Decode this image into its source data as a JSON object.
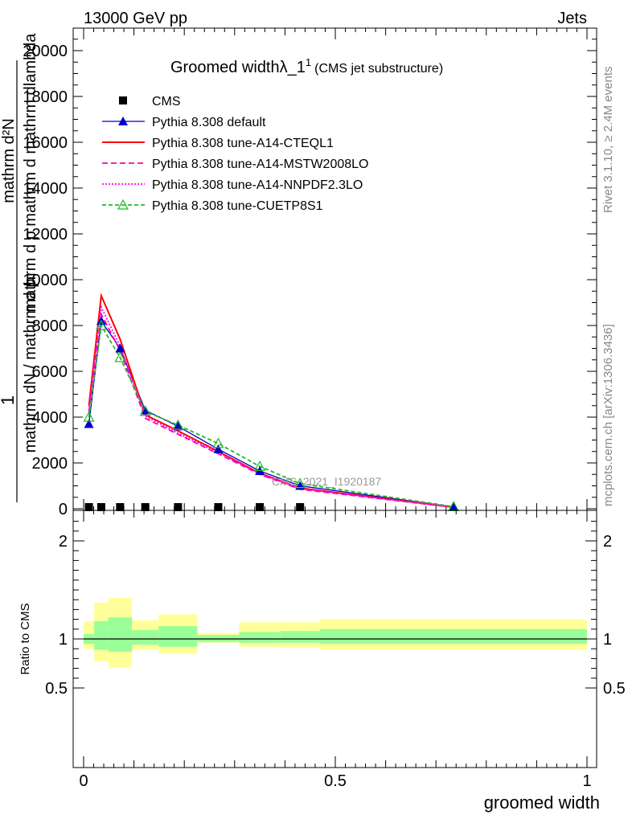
{
  "header": {
    "left": "13000 GeV pp",
    "right": "Jets"
  },
  "side": {
    "rivet": "Rivet 3.1.10, ≥ 2.4M events",
    "mcplots": "mcplots.cern.ch [arXiv:1306.3436]"
  },
  "colors": {
    "cms": "#000000",
    "default": "#0000cc",
    "cteql1": "#ff0000",
    "mstw": "#ff00aa",
    "nnpdf": "#ff00ff",
    "cuetp8s1": "#22bb22",
    "band_inner": "#99ff99",
    "band_outer": "#ffff99"
  },
  "chart_data": [
    {
      "type": "line",
      "title": "Groomed widthλ_1",
      "title_sup": "1",
      "title_suffix": "(CMS jet substructure)",
      "ylabel_top": "1",
      "ylabel_main": "mathrm dN / mathrm d p",
      "ylabel_frac_num": "mathrm d²N",
      "ylabel_frac_den": "mathrm d p mathrm d mathrm dlambda",
      "watermark": "CMS_2021_I1920187",
      "xlim": [
        0,
        1
      ],
      "ylim": [
        0,
        21000
      ],
      "yticks": [
        0,
        2000,
        4000,
        6000,
        8000,
        10000,
        12000,
        14000,
        16000,
        18000,
        20000
      ],
      "ytick_labels": [
        "0",
        "2000",
        "4000",
        "6000",
        "8000",
        "10000",
        "12000",
        "14000",
        "16000",
        "18000",
        "20000"
      ],
      "legend_position": "top-left",
      "series": [
        {
          "name": "CMS",
          "style": "marker-square",
          "color": "#000000",
          "x": [
            0.0105,
            0.035,
            0.0725,
            0.1225,
            0.1875,
            0.2675,
            0.35,
            0.43
          ],
          "y": [
            0,
            0,
            0,
            0,
            0,
            0,
            0,
            0
          ]
        },
        {
          "name": "Pythia 8.308 default",
          "style": "solid-triangle",
          "color": "#0000cc",
          "x": [
            0.0105,
            0.035,
            0.0725,
            0.1225,
            0.1875,
            0.2675,
            0.35,
            0.43,
            0.735
          ],
          "y": [
            3700,
            8200,
            7000,
            4300,
            3600,
            2600,
            1650,
            1000,
            80
          ]
        },
        {
          "name": "Pythia 8.308 tune-A14-CTEQL1",
          "style": "solid",
          "color": "#ff0000",
          "x": [
            0.0105,
            0.035,
            0.0725,
            0.1225,
            0.1875,
            0.2675,
            0.35,
            0.43,
            0.735
          ],
          "y": [
            4500,
            9300,
            7400,
            4100,
            3400,
            2500,
            1550,
            900,
            70
          ]
        },
        {
          "name": "Pythia 8.308 tune-A14-MSTW2008LO",
          "style": "dashed",
          "color": "#ff00aa",
          "x": [
            0.0105,
            0.035,
            0.0725,
            0.1225,
            0.1875,
            0.2675,
            0.35,
            0.43,
            0.735
          ],
          "y": [
            4200,
            8500,
            6900,
            3950,
            3250,
            2400,
            1500,
            850,
            60
          ]
        },
        {
          "name": "Pythia 8.308 tune-A14-NNPDF2.3LO",
          "style": "dotted",
          "color": "#ff00ff",
          "x": [
            0.0105,
            0.035,
            0.0725,
            0.1225,
            0.1875,
            0.2675,
            0.35,
            0.43,
            0.735
          ],
          "y": [
            4300,
            8800,
            7100,
            4050,
            3300,
            2450,
            1520,
            880,
            65
          ]
        },
        {
          "name": "Pythia 8.308 tune-CUETP8S1",
          "style": "dashed-open-triangle",
          "color": "#22bb22",
          "x": [
            0.0105,
            0.035,
            0.0725,
            0.1225,
            0.1875,
            0.2675,
            0.35,
            0.43,
            0.735
          ],
          "y": [
            4000,
            8000,
            6600,
            4250,
            3650,
            2850,
            1850,
            1100,
            90
          ]
        }
      ]
    },
    {
      "type": "area",
      "ylabel": "Ratio to CMS",
      "xlabel": "groomed width",
      "xlim": [
        0,
        1
      ],
      "ylim": [
        0.35,
        2.25
      ],
      "yticks": [
        0.5,
        1,
        2
      ],
      "ytick_labels": [
        "0.5",
        "1",
        "2"
      ],
      "xticks": [
        0,
        0.5,
        1
      ],
      "xtick_labels": [
        "0",
        "0.5",
        "1"
      ],
      "bins": [
        {
          "x0": 0.0,
          "x1": 0.021,
          "inner": [
            0.95,
            1.05
          ],
          "outer": [
            0.9,
            1.18
          ]
        },
        {
          "x0": 0.021,
          "x1": 0.049,
          "inner": [
            0.89,
            1.18
          ],
          "outer": [
            0.77,
            1.37
          ]
        },
        {
          "x0": 0.049,
          "x1": 0.096,
          "inner": [
            0.87,
            1.22
          ],
          "outer": [
            0.71,
            1.42
          ]
        },
        {
          "x0": 0.096,
          "x1": 0.149,
          "inner": [
            0.94,
            1.09
          ],
          "outer": [
            0.89,
            1.19
          ]
        },
        {
          "x0": 0.149,
          "x1": 0.226,
          "inner": [
            0.92,
            1.13
          ],
          "outer": [
            0.85,
            1.25
          ]
        },
        {
          "x0": 0.226,
          "x1": 0.309,
          "inner": [
            0.97,
            1.04
          ],
          "outer": [
            0.96,
            1.06
          ]
        },
        {
          "x0": 0.309,
          "x1": 0.391,
          "inner": [
            0.96,
            1.07
          ],
          "outer": [
            0.92,
            1.17
          ]
        },
        {
          "x0": 0.391,
          "x1": 0.469,
          "inner": [
            0.96,
            1.08
          ],
          "outer": [
            0.91,
            1.17
          ]
        },
        {
          "x0": 0.469,
          "x1": 1.0,
          "inner": [
            0.95,
            1.1
          ],
          "outer": [
            0.89,
            1.2
          ]
        }
      ]
    }
  ]
}
